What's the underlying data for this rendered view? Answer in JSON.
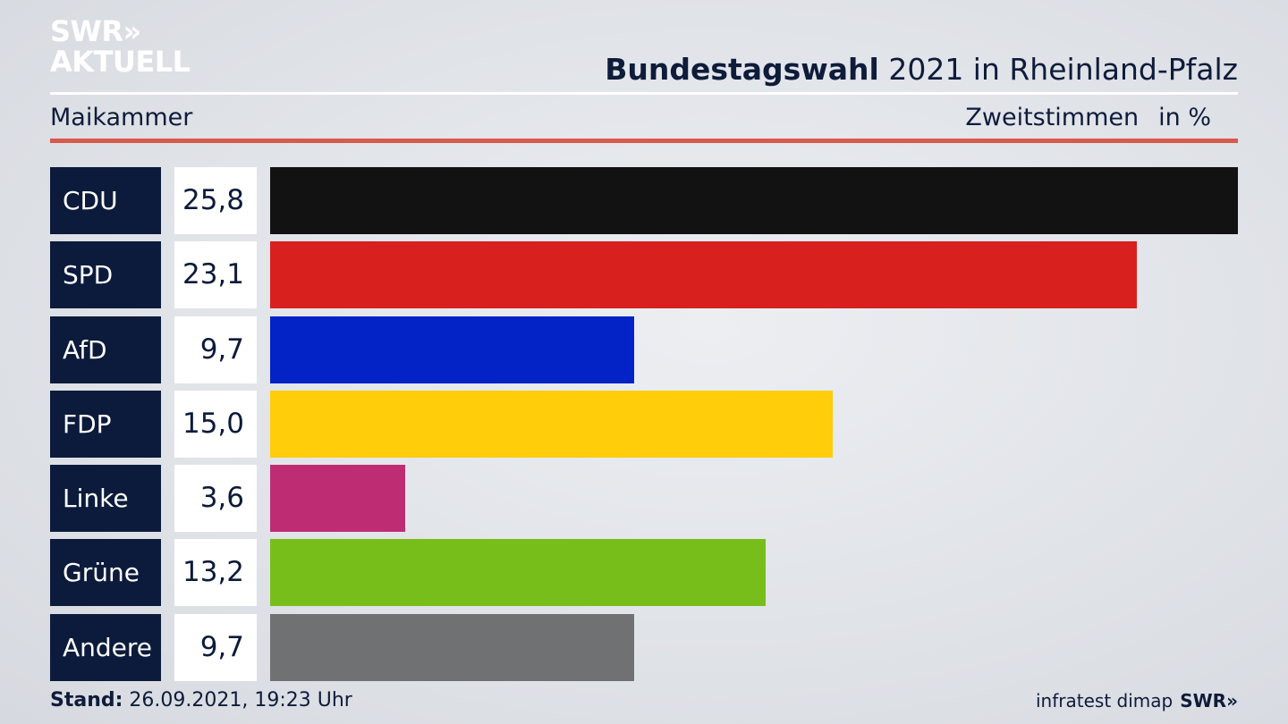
{
  "logo": {
    "line1": "SWR»",
    "line2": "AKTUELL"
  },
  "header": {
    "title_bold": "Bundestagswahl",
    "title_rest": " 2021 in Rheinland-Pfalz",
    "location": "Maikammer",
    "measure": "Zweitstimmen",
    "unit": "in %"
  },
  "footer": {
    "stand_label": "Stand:",
    "stand_value": " 26.09.2021, 19:23 Uhr",
    "source": "infratest dimap",
    "brand": "SWR»"
  },
  "chart_data": {
    "type": "bar",
    "orientation": "horizontal",
    "categories": [
      "CDU",
      "SPD",
      "AfD",
      "FDP",
      "Linke",
      "Grüne",
      "Andere"
    ],
    "values": [
      25.8,
      23.1,
      9.7,
      15.0,
      3.6,
      13.2,
      9.7
    ],
    "value_labels": [
      "25,8",
      "23,1",
      "9,7",
      "15,0",
      "3,6",
      "13,2",
      "9,7"
    ],
    "colors": [
      "#121212",
      "#d8201f",
      "#0323c6",
      "#ffcd0a",
      "#be2d73",
      "#78be1b",
      "#707173"
    ],
    "title": "Bundestagswahl 2021 in Rheinland-Pfalz",
    "xlabel": "",
    "ylabel": "",
    "xlim": [
      0,
      25.8
    ]
  }
}
